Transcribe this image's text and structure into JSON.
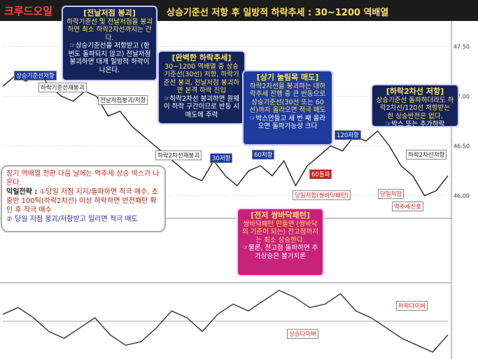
{
  "header": {
    "title": "크루드오일",
    "subtitle": "상승기준선 저항 후 일방적 하락추세 : 30~1200 역배열"
  },
  "annotations": [
    {
      "title": "[전날저점 붕괴]",
      "lines": [
        "하락기준선 및 전날저점을 붕괴하면 최소 하락2차선까지는 간다.",
        "☞상승기준선을 저항받고 (한 번도 돌파되지 않고) 전날저점 붕괴하면 대개 일방적 하락이 나온다."
      ]
    },
    {
      "title": "[완벽한 하락추세]",
      "lines": [
        "30~1200 역배열 중 상승기준선(30선) 저항, 하락기준선 붕괴, 전날저점 붕괴하면 본격 하락 진입",
        "☞하락2차선 붕괴하면 원웨이 하락 구간이므로 반등 시 매도에 주력"
      ]
    },
    {
      "title": "[상기 눌림목 매도]",
      "lines": [
        "하락2차선을 붕괴하는 대하락추세 진행 중 큰 반등으로 상승기준선(30선 또는 60선)까지 올라오면 적극 매도",
        "☞박스만들고 세 번 째 올라오면 돌파가능성 크다"
      ]
    },
    {
      "title": "[하락2차선 저항]",
      "lines": [
        "상승기준선 돌파하더라도 하락2차선/120선 저항받는 한 상승반전은 없다.",
        "☞박스 또는 추가하락"
      ]
    },
    {
      "title": "[전저 쌍바닥패턴]",
      "lines": [
        "쌍바닥패턴 만들면 (쌍바닥의 기준이 되는) 전고점까지는 최소 상승한다.",
        "☞물론, 전고점 돌파하면 추가상승은 불가지론"
      ]
    }
  ],
  "strategy": {
    "headline": "장기 역배열 전환 다음 날에는 역추세 상승 박스가 나온다.",
    "label": "익일전략 :",
    "lines": [
      "①당일 저점 지지/돌파하면 적극 매수, 초중반 100틱(하락2차선) 이상 하락하면 반전패턴 확인 후 적극 매수",
      "② 당일 저점 붕괴/저항받고 밀리면 적극 매도"
    ]
  },
  "labels": [
    "상승기준선저항",
    "하락기준선재붕괴",
    "전날저점붕괴/저항",
    "하락2차선재붕괴",
    "30저항",
    "60저항",
    "120저항",
    "60돌파",
    "당일저점(쌍바닥패턴)",
    "당일저점",
    "하락2차선저항",
    "역추세신호",
    "상승다이버",
    "하락다이버"
  ],
  "chart_data": [
    {
      "type": "line",
      "color": "#222222",
      "categories": [
        null,
        null,
        null,
        null,
        null,
        null,
        null,
        null,
        null,
        null,
        null,
        null,
        null,
        null,
        null,
        null,
        null,
        null,
        null,
        null,
        null,
        null,
        null,
        null,
        null,
        null,
        null,
        null,
        null,
        null,
        null,
        null,
        null,
        null,
        null,
        null,
        null,
        null,
        null
      ],
      "values": [
        47.1,
        47.2,
        47.15,
        47.25,
        47.1,
        47.0,
        46.95,
        47.05,
        47.0,
        46.8,
        46.85,
        46.7,
        46.6,
        46.5,
        46.4,
        46.3,
        46.2,
        46.15,
        46.35,
        46.2,
        46.1,
        46.25,
        46.3,
        46.2,
        46.35,
        46.1,
        46.3,
        46.4,
        46.5,
        46.45,
        46.6,
        46.55,
        46.65,
        46.5,
        46.3,
        46.2,
        46.0,
        46.05,
        46.2
      ],
      "ylim": [
        45.8,
        47.7
      ],
      "yticks": [
        {
          "value": 46.0,
          "label": "46.00"
        },
        {
          "value": 46.5,
          "label": "46.50"
        },
        {
          "value": 47.0,
          "label": "47.00"
        },
        {
          "value": 47.5,
          "label": "47.50"
        }
      ]
    },
    {
      "type": "line",
      "color": "#333333",
      "categories": [
        null,
        null,
        null,
        null,
        null,
        null,
        null,
        null,
        null,
        null,
        null,
        null,
        null,
        null,
        null,
        null,
        null,
        null,
        null,
        null,
        null,
        null,
        null,
        null,
        null,
        null,
        null,
        null,
        null,
        null
      ],
      "values": [
        0.2,
        0.4,
        0.1,
        -0.3,
        -0.5,
        -0.2,
        0.1,
        -0.4,
        -0.7,
        -0.6,
        -0.2,
        0.3,
        0.1,
        -0.3,
        0.2,
        0.5,
        0.3,
        0.6,
        0.9,
        0.7,
        0.4,
        0.5,
        0.8,
        0.3,
        0.1,
        -0.2,
        -0.5,
        -0.7,
        -0.9,
        -0.4
      ],
      "ylim": [
        -1,
        1
      ]
    }
  ]
}
